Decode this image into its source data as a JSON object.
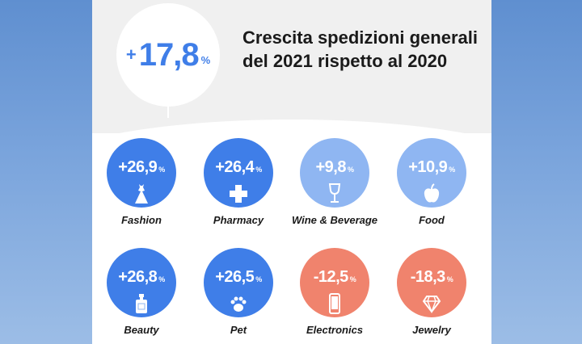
{
  "header": {
    "sign": "+",
    "value": "17,8",
    "unit": "%",
    "title": "Crescita spedizioni generali del 2021 rispetto al 2020"
  },
  "chart_data": {
    "type": "table",
    "title": "Crescita spedizioni generali del 2021 rispetto al 2020",
    "unit": "%",
    "total": 17.8,
    "categories": [
      "Fashion",
      "Pharmacy",
      "Wine & Beverage",
      "Food",
      "Beauty",
      "Pet",
      "Electronics",
      "Jewelry"
    ],
    "values": [
      26.9,
      26.4,
      9.8,
      10.9,
      26.8,
      26.5,
      -12.5,
      -18.3
    ]
  },
  "items": [
    {
      "label": "Fashion",
      "value": "+26,9",
      "pct": "%",
      "color": "#3f7ee8",
      "icon": "dress-icon"
    },
    {
      "label": "Pharmacy",
      "value": "+26,4",
      "pct": "%",
      "color": "#3f7ee8",
      "icon": "pharmacy-cross-icon"
    },
    {
      "label": "Wine & Beverage",
      "value": "+9,8",
      "pct": "%",
      "color": "#8fb6f2",
      "icon": "wine-glass-icon"
    },
    {
      "label": "Food",
      "value": "+10,9",
      "pct": "%",
      "color": "#8fb6f2",
      "icon": "apple-icon"
    },
    {
      "label": "Beauty",
      "value": "+26,8",
      "pct": "%",
      "color": "#3f7ee8",
      "icon": "perfume-bottle-icon"
    },
    {
      "label": "Pet",
      "value": "+26,5",
      "pct": "%",
      "color": "#3f7ee8",
      "icon": "paw-icon"
    },
    {
      "label": "Electronics",
      "value": "-12,5",
      "pct": "%",
      "color": "#f0836d",
      "icon": "smartphone-icon"
    },
    {
      "label": "Jewelry",
      "value": "-18,3",
      "pct": "%",
      "color": "#f0836d",
      "icon": "diamond-icon"
    }
  ]
}
